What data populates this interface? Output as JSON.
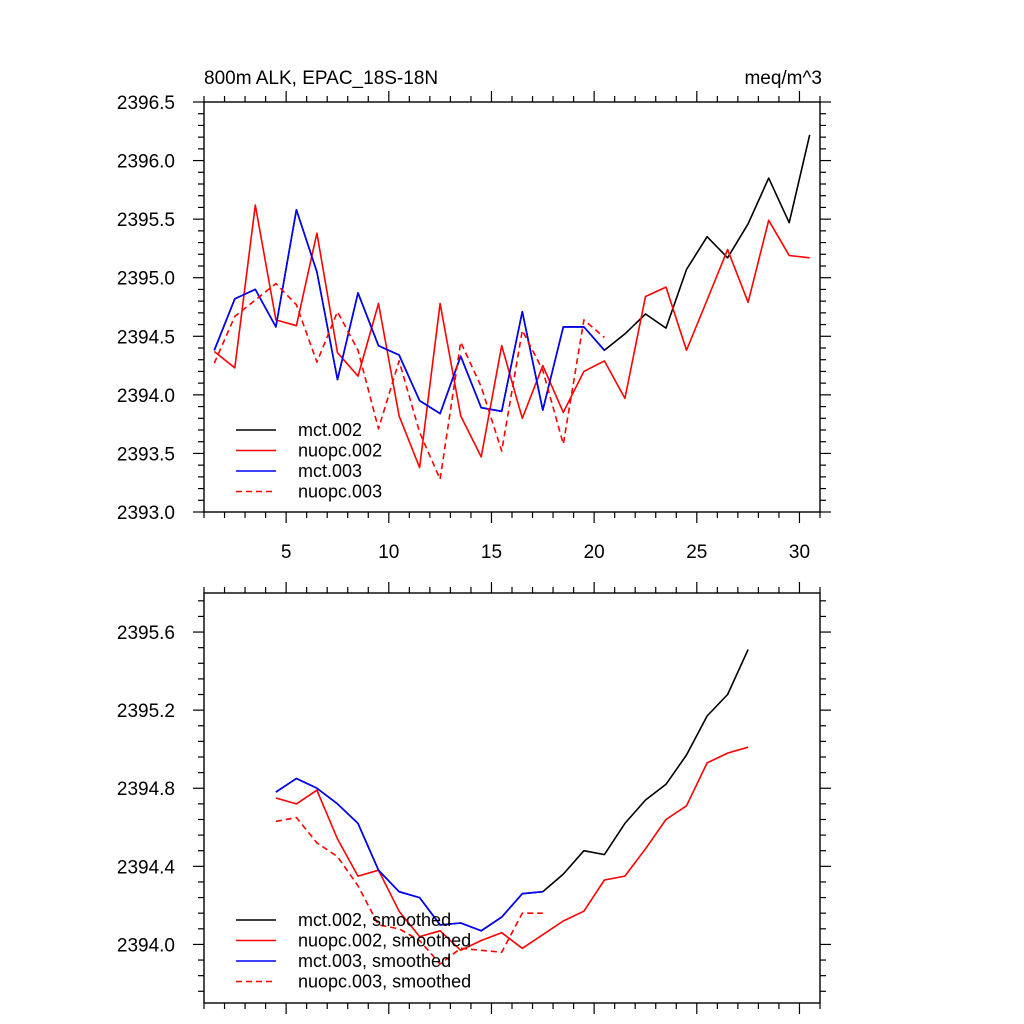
{
  "chart_data": [
    {
      "type": "line",
      "title": "800m ALK, EPAC_18S-18N",
      "units": "meq/m^3",
      "xlabel": "",
      "ylabel": "",
      "xlim": [
        1,
        31
      ],
      "ylim": [
        2393.0,
        2396.5
      ],
      "xticks": [
        5,
        10,
        15,
        20,
        25,
        30
      ],
      "yticks": [
        2393.0,
        2393.5,
        2394.0,
        2394.5,
        2395.0,
        2395.5,
        2396.0,
        2396.5
      ],
      "ytick_labels": [
        "2393.0",
        "2393.5",
        "2394.0",
        "2394.5",
        "2395.0",
        "2395.5",
        "2396.0",
        "2396.5"
      ],
      "legend_position": "bottom-left",
      "series": [
        {
          "name": "mct.002",
          "color": "#000000",
          "dash": "solid",
          "x": [
            1.5,
            2.5,
            3.5,
            4.5,
            5.5,
            6.5,
            7.5,
            8.5,
            9.5,
            10.5,
            11.5,
            12.5,
            13.5,
            14.5,
            15.5,
            16.5,
            17.5,
            18.5,
            19.5,
            20.5,
            21.5,
            22.5,
            23.5,
            24.5,
            25.5,
            26.5,
            27.5,
            28.5,
            29.5,
            30.5
          ],
          "values": [
            2394.38,
            2394.82,
            2394.9,
            2394.58,
            2395.58,
            2395.05,
            2394.13,
            2394.87,
            2394.42,
            2394.34,
            2393.95,
            2393.84,
            2394.33,
            2393.89,
            2393.86,
            2394.71,
            2393.87,
            2394.58,
            2394.58,
            2394.38,
            2394.52,
            2394.69,
            2394.57,
            2395.07,
            2395.35,
            2395.17,
            2395.46,
            2395.85,
            2395.47,
            2396.22
          ]
        },
        {
          "name": "nuopc.002",
          "color": "#ff0000",
          "dash": "solid",
          "x": [
            1.5,
            2.5,
            3.5,
            4.5,
            5.5,
            6.5,
            7.5,
            8.5,
            9.5,
            10.5,
            11.5,
            12.5,
            13.5,
            14.5,
            15.5,
            16.5,
            17.5,
            18.5,
            19.5,
            20.5,
            21.5,
            22.5,
            23.5,
            24.5,
            25.5,
            26.5,
            27.5,
            28.5,
            29.5,
            30.5
          ],
          "values": [
            2394.37,
            2394.23,
            2395.62,
            2394.64,
            2394.59,
            2395.38,
            2394.36,
            2394.16,
            2394.78,
            2393.82,
            2393.38,
            2394.78,
            2393.82,
            2393.47,
            2394.42,
            2393.8,
            2394.25,
            2393.85,
            2394.2,
            2394.29,
            2393.97,
            2394.84,
            2394.92,
            2394.38,
            2394.81,
            2395.24,
            2394.79,
            2395.49,
            2395.19,
            2395.17
          ]
        },
        {
          "name": "mct.003",
          "color": "#0000ff",
          "dash": "solid",
          "x": [
            1.5,
            2.5,
            3.5,
            4.5,
            5.5,
            6.5,
            7.5,
            8.5,
            9.5,
            10.5,
            11.5,
            12.5,
            13.5,
            14.5,
            15.5,
            16.5,
            17.5,
            18.5,
            19.5,
            20.5
          ],
          "values": [
            2394.38,
            2394.82,
            2394.9,
            2394.58,
            2395.58,
            2395.05,
            2394.13,
            2394.87,
            2394.42,
            2394.34,
            2393.95,
            2393.84,
            2394.33,
            2393.89,
            2393.86,
            2394.71,
            2393.87,
            2394.58,
            2394.58,
            2394.38
          ]
        },
        {
          "name": "nuopc.003",
          "color": "#ff0000",
          "dash": "dashed",
          "x": [
            1.5,
            2.5,
            3.5,
            4.5,
            5.5,
            6.5,
            7.5,
            8.5,
            9.5,
            10.5,
            11.5,
            12.5,
            13.5,
            14.5,
            15.5,
            16.5,
            17.5,
            18.5,
            19.5,
            20.5
          ],
          "values": [
            2394.27,
            2394.67,
            2394.81,
            2394.95,
            2394.77,
            2394.28,
            2394.71,
            2394.38,
            2393.71,
            2394.29,
            2393.68,
            2393.28,
            2394.45,
            2394.07,
            2393.52,
            2394.55,
            2394.21,
            2393.58,
            2394.64,
            2394.49
          ]
        }
      ]
    },
    {
      "type": "line",
      "title": "",
      "xlabel": "",
      "ylabel": "",
      "xlim": [
        1,
        31
      ],
      "ylim": [
        2393.7,
        2395.8
      ],
      "xticks": [
        5,
        10,
        15,
        20,
        25,
        30
      ],
      "yticks": [
        2394.0,
        2394.4,
        2394.8,
        2395.2,
        2395.6
      ],
      "ytick_labels": [
        "2394.0",
        "2394.4",
        "2394.8",
        "2395.2",
        "2395.6"
      ],
      "legend_position": "bottom-left",
      "series": [
        {
          "name": "mct.002, smoothed",
          "color": "#000000",
          "dash": "solid",
          "x": [
            4.5,
            5.5,
            6.5,
            7.5,
            8.5,
            9.5,
            10.5,
            11.5,
            12.5,
            13.5,
            14.5,
            15.5,
            16.5,
            17.5,
            18.5,
            19.5,
            20.5,
            21.5,
            22.5,
            23.5,
            24.5,
            25.5,
            26.5,
            27.5
          ],
          "values": [
            2394.78,
            2394.85,
            2394.8,
            2394.72,
            2394.62,
            2394.38,
            2394.27,
            2394.24,
            2394.1,
            2394.11,
            2394.07,
            2394.14,
            2394.26,
            2394.27,
            2394.36,
            2394.48,
            2394.46,
            2394.62,
            2394.74,
            2394.82,
            2394.97,
            2395.17,
            2395.28,
            2395.51
          ]
        },
        {
          "name": "nuopc.002, smoothed",
          "color": "#ff0000",
          "dash": "solid",
          "x": [
            4.5,
            5.5,
            6.5,
            7.5,
            8.5,
            9.5,
            10.5,
            11.5,
            12.5,
            13.5,
            14.5,
            15.5,
            16.5,
            17.5,
            18.5,
            19.5,
            20.5,
            21.5,
            22.5,
            23.5,
            24.5,
            25.5,
            26.5,
            27.5
          ],
          "values": [
            2394.75,
            2394.72,
            2394.79,
            2394.54,
            2394.35,
            2394.38,
            2394.17,
            2394.04,
            2394.07,
            2393.97,
            2394.02,
            2394.06,
            2393.98,
            2394.05,
            2394.12,
            2394.17,
            2394.33,
            2394.35,
            2394.49,
            2394.64,
            2394.71,
            2394.93,
            2394.98,
            2395.01
          ]
        },
        {
          "name": "mct.003, smoothed",
          "color": "#0000ff",
          "dash": "solid",
          "x": [
            4.5,
            5.5,
            6.5,
            7.5,
            8.5,
            9.5,
            10.5,
            11.5,
            12.5,
            13.5,
            14.5,
            15.5,
            16.5,
            17.5
          ],
          "values": [
            2394.78,
            2394.85,
            2394.8,
            2394.72,
            2394.62,
            2394.38,
            2394.27,
            2394.24,
            2394.1,
            2394.11,
            2394.07,
            2394.14,
            2394.26,
            2394.27
          ]
        },
        {
          "name": "nuopc.003, smoothed",
          "color": "#ff0000",
          "dash": "dashed",
          "x": [
            4.5,
            5.5,
            6.5,
            7.5,
            8.5,
            9.5,
            10.5,
            11.5,
            12.5,
            13.5,
            14.5,
            15.5,
            16.5,
            17.5
          ],
          "values": [
            2394.63,
            2394.65,
            2394.52,
            2394.45,
            2394.3,
            2394.1,
            2394.08,
            2394.02,
            2393.9,
            2393.98,
            2393.97,
            2393.96,
            2394.16,
            2394.16
          ]
        }
      ]
    }
  ]
}
